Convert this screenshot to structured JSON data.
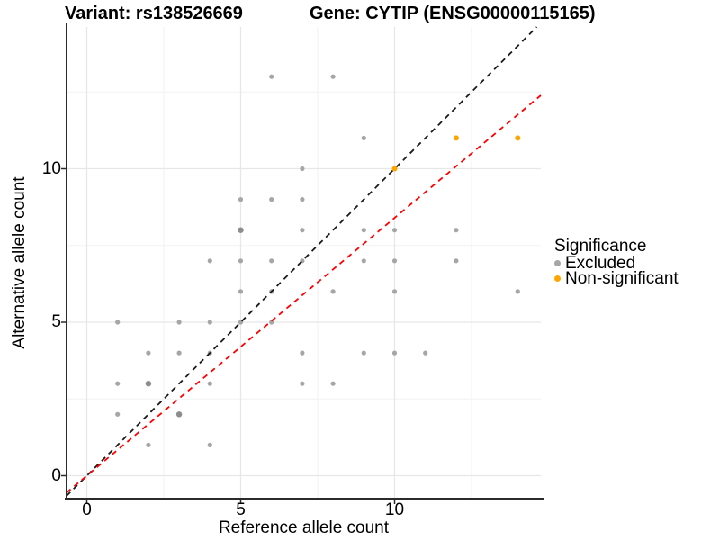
{
  "chart_data": {
    "type": "scatter",
    "title_left": "Variant: rs138526669",
    "title_right": "Gene: CYTIP (ENSG00000115165)",
    "xlabel": "Reference allele count",
    "ylabel": "Alternative allele count",
    "x_ticks": [
      0,
      5,
      10
    ],
    "y_ticks": [
      0,
      5,
      10
    ],
    "x_minor": [
      2.5,
      7.5,
      12.5
    ],
    "y_minor": [
      2.5,
      7.5,
      12.5
    ],
    "xlim": [
      -0.66,
      14.75
    ],
    "ylim": [
      -0.75,
      14.62
    ],
    "grid": true,
    "legend_position": "right",
    "colors": {
      "excluded": "#a6a6a6",
      "excluded_overlap": "#8d8d8d",
      "non_significant": "#ffa500",
      "identity_line": "#1a1a1a",
      "fit_line": "#ff0000",
      "grid_major": "#e7e7e7",
      "grid_minor": "#f2f2f2",
      "axis": "#2b2b2b"
    },
    "series": [
      {
        "name": "Excluded",
        "color": "#a6a6a6",
        "overlap_color": "#8d8d8d",
        "points": [
          [
            1,
            2
          ],
          [
            1,
            3
          ],
          [
            1,
            5
          ],
          [
            2,
            1
          ],
          [
            2,
            4
          ],
          [
            3,
            4
          ],
          [
            3,
            5
          ],
          [
            4,
            1
          ],
          [
            4,
            3
          ],
          [
            4,
            4
          ],
          [
            4,
            5
          ],
          [
            4,
            7
          ],
          [
            5,
            5
          ],
          [
            5,
            6
          ],
          [
            5,
            7
          ],
          [
            5,
            9
          ],
          [
            6,
            5
          ],
          [
            6,
            6
          ],
          [
            6,
            7
          ],
          [
            6,
            9
          ],
          [
            6,
            13
          ],
          [
            7,
            3
          ],
          [
            7,
            4
          ],
          [
            7,
            7
          ],
          [
            7,
            8
          ],
          [
            7,
            9
          ],
          [
            7,
            10
          ],
          [
            8,
            3
          ],
          [
            8,
            6
          ],
          [
            8,
            13
          ],
          [
            9,
            4
          ],
          [
            9,
            7
          ],
          [
            9,
            8
          ],
          [
            9,
            11
          ],
          [
            10,
            4
          ],
          [
            10,
            6
          ],
          [
            10,
            7
          ],
          [
            10,
            8
          ],
          [
            11,
            4
          ],
          [
            12,
            7
          ],
          [
            12,
            8
          ],
          [
            14,
            6
          ]
        ],
        "overlap_points": [
          [
            2,
            3
          ],
          [
            3,
            2
          ],
          [
            5,
            8
          ]
        ]
      },
      {
        "name": "Non-significant",
        "color": "#ffa500",
        "points": [
          [
            10,
            10
          ],
          [
            12,
            11
          ],
          [
            14,
            11
          ]
        ]
      }
    ],
    "lines": [
      {
        "name": "identity-line",
        "color": "#1a1a1a",
        "slope": 1,
        "intercept": 0,
        "style": "dashed"
      },
      {
        "name": "fit-line",
        "color": "#ff0000",
        "slope": 0.84,
        "intercept": 0,
        "style": "dashed"
      }
    ],
    "legend": {
      "title": "Significance",
      "items": [
        {
          "label": "Excluded",
          "color": "#a6a6a6"
        },
        {
          "label": "Non-significant",
          "color": "#ffa500"
        }
      ]
    }
  }
}
